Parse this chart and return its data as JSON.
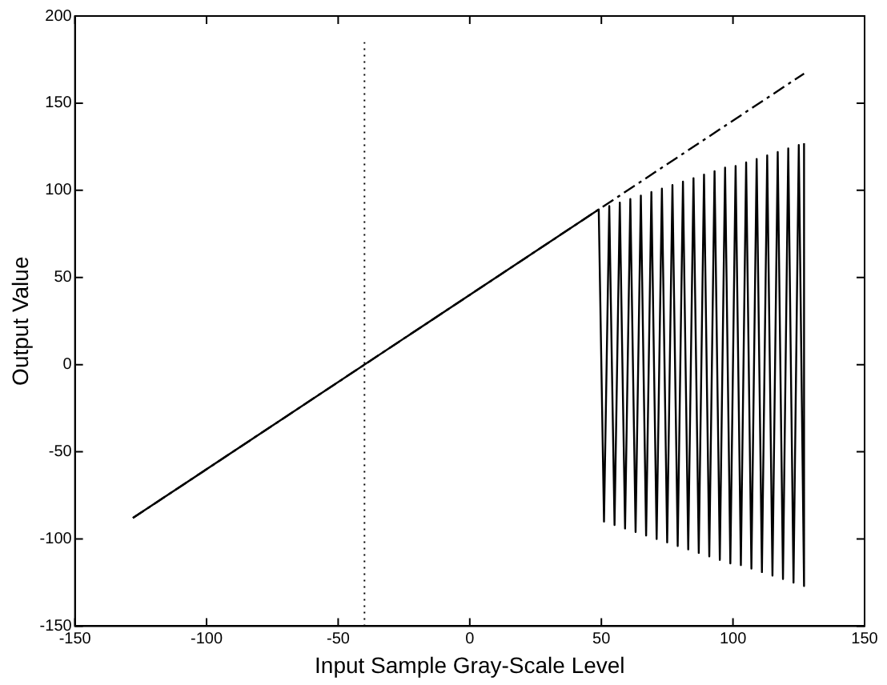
{
  "chart_data": {
    "type": "line",
    "xlabel": "Input Sample Gray-Scale Level",
    "ylabel": "Output Value",
    "xlim": [
      -150,
      150
    ],
    "xticks": [
      -150,
      -100,
      -50,
      0,
      50,
      100,
      150
    ],
    "ylim": [
      -150,
      200
    ],
    "yticks": [
      -150,
      -100,
      -50,
      0,
      50,
      100,
      150,
      200
    ],
    "grid": false,
    "legend": false,
    "marker": "none",
    "series": [
      {
        "color": "#000000",
        "line_style": "solid",
        "x": [
          -128,
          49,
          51,
          53,
          55,
          57,
          59,
          61,
          63,
          65,
          67,
          69,
          71,
          73,
          75,
          77,
          79,
          81,
          83,
          85,
          87,
          89,
          91,
          93,
          95,
          97,
          99,
          101,
          103,
          105,
          107,
          109,
          111,
          113,
          115,
          117,
          119,
          121,
          123,
          125,
          127,
          127
        ],
        "values": [
          -88,
          89,
          -90,
          91,
          -92,
          93,
          -94,
          95,
          -96,
          97,
          -98,
          99,
          -100,
          101,
          -102,
          103,
          -104,
          105,
          -106,
          107,
          -108,
          109,
          -110,
          111,
          -112,
          113,
          -114,
          114,
          -115,
          116,
          -117,
          118,
          -119,
          120,
          -121,
          122,
          -123,
          124,
          -125,
          126,
          -127,
          127
        ]
      },
      {
        "color": "#000000",
        "line_style": "dashed",
        "x": [
          -128,
          127
        ],
        "values": [
          -88,
          167
        ]
      },
      {
        "color": "#000000",
        "line_style": "dotted",
        "x": [
          -40,
          -40
        ],
        "values": [
          -150,
          185
        ]
      }
    ]
  }
}
